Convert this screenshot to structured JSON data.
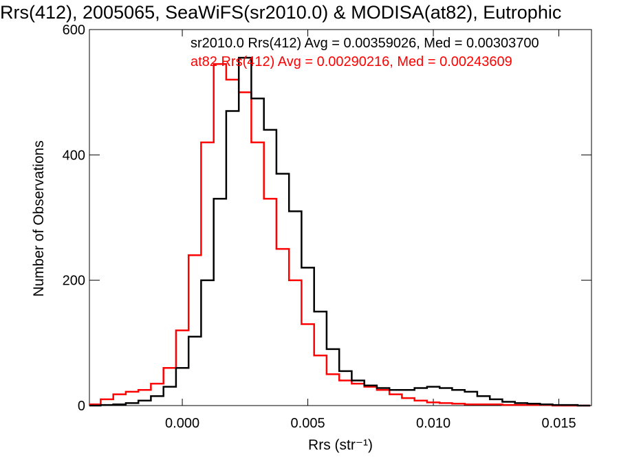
{
  "chart_data": {
    "type": "line",
    "title": "Rrs(412), 2005065, SeaWiFS(sr2010.0) & MODISA(at82), Eutrophic",
    "xlabel": "Rrs (str⁻¹)",
    "ylabel": "Number of Observations",
    "xlim": [
      -0.0037,
      0.0163
    ],
    "ylim": [
      0,
      600
    ],
    "xticks": [
      0.0,
      0.005,
      0.01,
      0.015
    ],
    "xtick_labels": [
      "0.000",
      "0.005",
      "0.010",
      "0.015"
    ],
    "yticks": [
      0,
      200,
      400,
      600
    ],
    "ytick_labels": [
      "0",
      "200",
      "400",
      "600"
    ],
    "grid": false,
    "legend_position": "top",
    "series": [
      {
        "name": "sr2010.0",
        "label": "sr2010.0 Rrs(412) Avg = 0.00359026, Med = 0.00303700",
        "color": "#000000",
        "x": [
          -0.0035,
          -0.003,
          -0.0025,
          -0.002,
          -0.0015,
          -0.001,
          -0.0005,
          0.0,
          0.0005,
          0.001,
          0.0015,
          0.002,
          0.0025,
          0.003,
          0.0035,
          0.004,
          0.0045,
          0.005,
          0.0055,
          0.006,
          0.0065,
          0.007,
          0.0075,
          0.008,
          0.0085,
          0.009,
          0.0095,
          0.01,
          0.0105,
          0.011,
          0.0115,
          0.012,
          0.0125,
          0.013,
          0.0135,
          0.014,
          0.0145,
          0.015,
          0.0155,
          0.016
        ],
        "y": [
          0,
          1,
          2,
          4,
          8,
          15,
          30,
          60,
          110,
          200,
          330,
          470,
          555,
          490,
          440,
          370,
          310,
          220,
          150,
          90,
          55,
          40,
          32,
          28,
          25,
          25,
          28,
          30,
          28,
          25,
          22,
          15,
          10,
          6,
          4,
          3,
          2,
          1,
          1,
          0
        ]
      },
      {
        "name": "at82",
        "label": "at82 Rrs(412) Avg = 0.00290216, Med = 0.00243609",
        "color": "#ff0000",
        "x": [
          -0.0035,
          -0.003,
          -0.0025,
          -0.002,
          -0.0015,
          -0.001,
          -0.0005,
          0.0,
          0.0005,
          0.001,
          0.0015,
          0.002,
          0.0025,
          0.003,
          0.0035,
          0.004,
          0.0045,
          0.005,
          0.0055,
          0.006,
          0.0065,
          0.007,
          0.0075,
          0.008,
          0.0085,
          0.009,
          0.0095,
          0.01,
          0.0105,
          0.011,
          0.0115,
          0.012,
          0.0125,
          0.013,
          0.0135,
          0.014,
          0.0145,
          0.015,
          0.0155,
          0.016
        ],
        "y": [
          2,
          10,
          18,
          22,
          25,
          35,
          60,
          120,
          240,
          420,
          545,
          520,
          500,
          420,
          330,
          250,
          200,
          130,
          80,
          50,
          40,
          35,
          30,
          25,
          18,
          12,
          8,
          5,
          4,
          3,
          2,
          2,
          2,
          1,
          1,
          1,
          1,
          0,
          0,
          0
        ]
      }
    ]
  }
}
